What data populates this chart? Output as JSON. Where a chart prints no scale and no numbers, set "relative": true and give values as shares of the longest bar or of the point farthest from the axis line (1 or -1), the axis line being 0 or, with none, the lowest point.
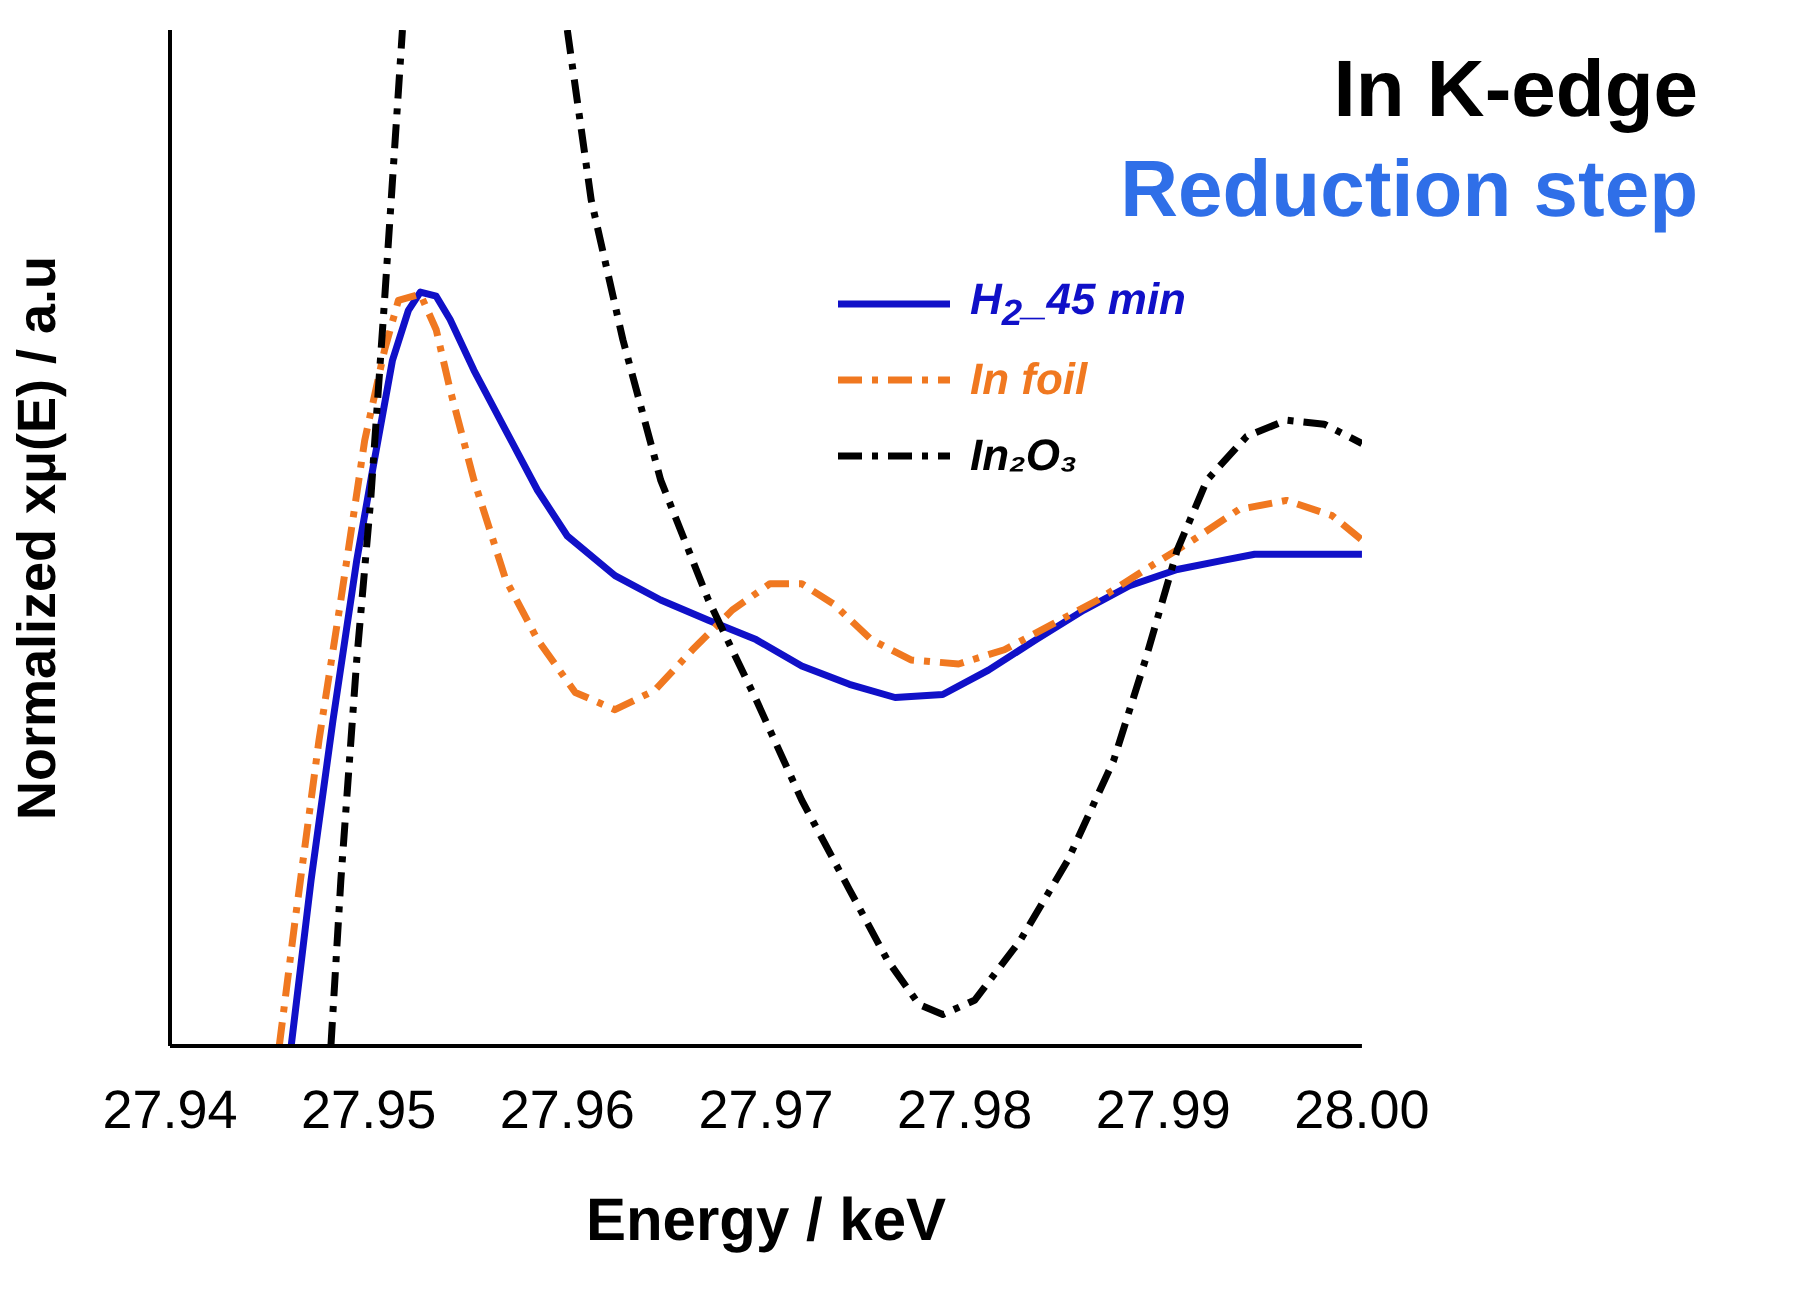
{
  "chart_data": {
    "type": "line",
    "title": "In K-edge",
    "subtitle": "Reduction step",
    "xlabel": "Energy / keV",
    "ylabel": "Normalized xμ(E) / a.u",
    "relative": true,
    "xlim": [
      27.94,
      28.0
    ],
    "xticks": [
      27.94,
      27.95,
      27.96,
      27.97,
      27.98,
      27.99,
      "28.00"
    ],
    "grid": false,
    "legend": "top right",
    "marker": "none",
    "series": [
      {
        "name": "H$_{2}$_45 min",
        "color": "#1010c8",
        "line_style": "solid",
        "x": [
          27.9461,
          27.9471,
          27.9482,
          27.9494,
          27.9502,
          27.9512,
          27.952,
          27.9526,
          27.9534,
          27.9541,
          27.9553,
          27.9569,
          27.9585,
          27.96,
          27.9624,
          27.9647,
          27.9671,
          27.9695,
          27.9718,
          27.9742,
          27.9765,
          27.9789,
          27.9812,
          27.9836,
          27.986,
          27.9883,
          27.9907,
          27.993,
          27.9946,
          28.0
        ],
        "values": [
          0,
          0.163,
          0.32,
          0.478,
          0.567,
          0.675,
          0.724,
          0.742,
          0.738,
          0.715,
          0.665,
          0.606,
          0.547,
          0.502,
          0.463,
          0.439,
          0.419,
          0.4,
          0.374,
          0.356,
          0.343,
          0.346,
          0.37,
          0.4,
          0.429,
          0.453,
          0.469,
          0.478,
          0.484,
          0.484
        ]
      },
      {
        "name": "In foil",
        "color": "#f07820",
        "line_style": "dashed",
        "x": [
          27.9455,
          27.9463,
          27.9475,
          27.9486,
          27.9498,
          27.9508,
          27.9515,
          27.9526,
          27.9534,
          27.9541,
          27.9553,
          27.9569,
          27.9585,
          27.9604,
          27.9624,
          27.9644,
          27.9663,
          27.9683,
          27.9702,
          27.9718,
          27.9734,
          27.9753,
          27.9773,
          27.9797,
          27.982,
          27.9844,
          27.9867,
          27.9891,
          27.9915,
          27.9938,
          27.9962,
          27.9985,
          28.0
        ],
        "values": [
          0,
          0.124,
          0.301,
          0.439,
          0.596,
          0.685,
          0.734,
          0.74,
          0.705,
          0.646,
          0.557,
          0.459,
          0.4,
          0.348,
          0.331,
          0.35,
          0.39,
          0.429,
          0.455,
          0.455,
          0.435,
          0.4,
          0.38,
          0.376,
          0.39,
          0.415,
          0.439,
          0.469,
          0.498,
          0.528,
          0.537,
          0.522,
          0.498
        ]
      },
      {
        "name": "In₂O₃",
        "color": "#000000",
        "line_style": "dashed",
        "x": [
          27.9481,
          27.9486,
          27.9494,
          27.9501,
          27.9508,
          27.9514,
          27.9517,
          27.955,
          27.96,
          27.9612,
          27.9628,
          27.9647,
          27.9671,
          27.9695,
          27.9718,
          27.9742,
          27.9761,
          27.9777,
          27.9789,
          27.9805,
          27.9828,
          27.9852,
          27.9875,
          27.9891,
          27.9907,
          27.9922,
          27.9942,
          27.9962,
          27.9981,
          28.0
        ],
        "values": [
          0,
          0.163,
          0.38,
          0.537,
          0.734,
          0.911,
          1,
          null,
          1,
          0.833,
          0.695,
          0.557,
          0.439,
          0.341,
          0.242,
          0.154,
          0.085,
          0.041,
          0.031,
          0.045,
          0.104,
          0.183,
          0.281,
          0.38,
          0.488,
          0.557,
          0.6,
          0.616,
          0.612,
          0.593
        ]
      }
    ]
  }
}
